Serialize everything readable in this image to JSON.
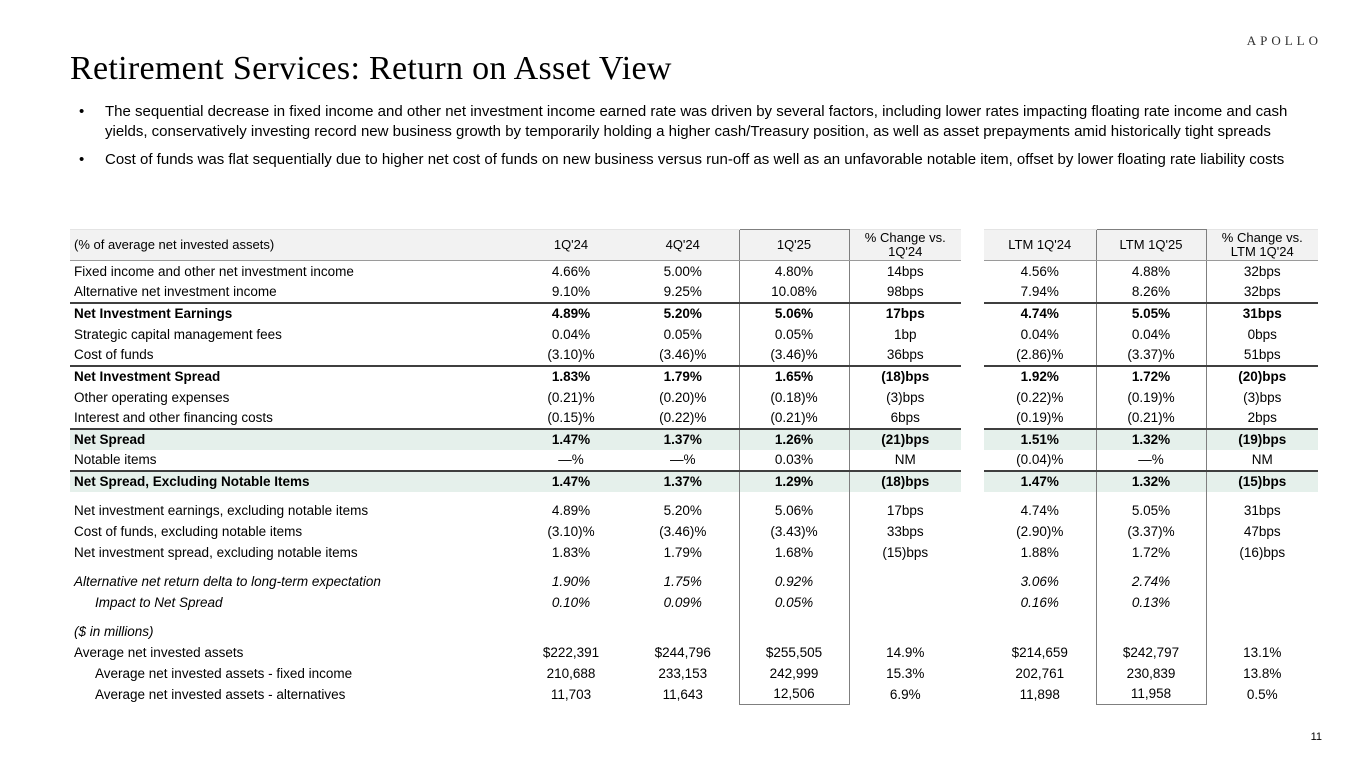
{
  "logo": "APOLLO",
  "page_number": "11",
  "title": "Retirement Services: Return on Asset View",
  "bullets": [
    "The sequential decrease in fixed income and other net investment income earned rate was driven by several factors, including lower rates impacting floating rate income and cash yields, conservatively investing record new business growth by temporarily holding a higher cash/Treasury position, as well as asset prepayments amid historically tight spreads",
    "Cost of funds was flat sequentially due to higher net cost of funds on new business versus run-off as well as an unfavorable notable item, offset by lower floating rate liability costs"
  ],
  "colors": {
    "green_row_bg": "#e5f0eb",
    "header_bg": "#f2f2f2",
    "box_border": "#7f7f7f",
    "section_rule": "#3f3f3f"
  },
  "table": {
    "columns": [
      "(% of average net invested assets)",
      "1Q'24",
      "4Q'24",
      "1Q'25",
      "% Change vs.\n1Q'24",
      "LTM 1Q'24",
      "LTM 1Q'25",
      "% Change vs.\nLTM 1Q'24"
    ],
    "rows": [
      {
        "label": "Fixed income and other net investment income",
        "values": [
          "4.66%",
          "5.00%",
          "4.80%",
          "14bps",
          "4.56%",
          "4.88%",
          "32bps"
        ]
      },
      {
        "label": "Alternative net investment income",
        "values": [
          "9.10%",
          "9.25%",
          "10.08%",
          "98bps",
          "7.94%",
          "8.26%",
          "32bps"
        ]
      },
      {
        "label": "Net Investment Earnings",
        "bold": true,
        "rule": true,
        "values": [
          "4.89%",
          "5.20%",
          "5.06%",
          "17bps",
          "4.74%",
          "5.05%",
          "31bps"
        ]
      },
      {
        "label": "Strategic capital management fees",
        "values": [
          "0.04%",
          "0.05%",
          "0.05%",
          "1bp",
          "0.04%",
          "0.04%",
          "0bps"
        ]
      },
      {
        "label": "Cost of funds",
        "values": [
          "(3.10)%",
          "(3.46)%",
          "(3.46)%",
          "36bps",
          "(2.86)%",
          "(3.37)%",
          "51bps"
        ]
      },
      {
        "label": "Net Investment Spread",
        "bold": true,
        "rule": true,
        "values": [
          "1.83%",
          "1.79%",
          "1.65%",
          "(18)bps",
          "1.92%",
          "1.72%",
          "(20)bps"
        ]
      },
      {
        "label": "Other operating expenses",
        "values": [
          "(0.21)%",
          "(0.20)%",
          "(0.18)%",
          "(3)bps",
          "(0.22)%",
          "(0.19)%",
          "(3)bps"
        ]
      },
      {
        "label": "Interest and other financing costs",
        "values": [
          "(0.15)%",
          "(0.22)%",
          "(0.21)%",
          "6bps",
          "(0.19)%",
          "(0.21)%",
          "2bps"
        ]
      },
      {
        "label": "Net Spread",
        "bold": true,
        "green": true,
        "rule": true,
        "values": [
          "1.47%",
          "1.37%",
          "1.26%",
          "(21)bps",
          "1.51%",
          "1.32%",
          "(19)bps"
        ]
      },
      {
        "label": "Notable items",
        "values": [
          "—%",
          "—%",
          "0.03%",
          "NM",
          "(0.04)%",
          "—%",
          "NM"
        ]
      },
      {
        "label": "Net Spread, Excluding Notable Items",
        "bold": true,
        "green": true,
        "rule": true,
        "values": [
          "1.47%",
          "1.37%",
          "1.29%",
          "(18)bps",
          "1.47%",
          "1.32%",
          "(15)bps"
        ]
      },
      {
        "label": "Net investment earnings, excluding notable items",
        "gap_before": true,
        "values": [
          "4.89%",
          "5.20%",
          "5.06%",
          "17bps",
          "4.74%",
          "5.05%",
          "31bps"
        ]
      },
      {
        "label": "Cost of funds, excluding notable items",
        "values": [
          "(3.10)%",
          "(3.46)%",
          "(3.43)%",
          "33bps",
          "(2.90)%",
          "(3.37)%",
          "47bps"
        ]
      },
      {
        "label": "Net investment spread, excluding notable items",
        "values": [
          "1.83%",
          "1.79%",
          "1.68%",
          "(15)bps",
          "1.88%",
          "1.72%",
          "(16)bps"
        ]
      },
      {
        "label": "Alternative net return delta to long-term expectation",
        "italic": true,
        "gap_before": true,
        "values": [
          "1.90%",
          "1.75%",
          "0.92%",
          "",
          "3.06%",
          "2.74%",
          ""
        ]
      },
      {
        "label": "Impact to Net Spread",
        "italic": true,
        "indent": true,
        "values": [
          "0.10%",
          "0.09%",
          "0.05%",
          "",
          "0.16%",
          "0.13%",
          ""
        ]
      },
      {
        "label": "($ in millions)",
        "italic": true,
        "gap_before": true,
        "values": [
          "",
          "",
          "",
          "",
          "",
          "",
          ""
        ]
      },
      {
        "label": "Average net invested assets",
        "values": [
          "$222,391",
          "$244,796",
          "$255,505",
          "14.9%",
          "$214,659",
          "$242,797",
          "13.1%"
        ]
      },
      {
        "label": "Average net invested assets - fixed income",
        "indent": true,
        "values": [
          "210,688",
          "233,153",
          "242,999",
          "15.3%",
          "202,761",
          "230,839",
          "13.8%"
        ]
      },
      {
        "label": "Average net invested assets - alternatives",
        "indent": true,
        "values": [
          "11,703",
          "11,643",
          "12,506",
          "6.9%",
          "11,898",
          "11,958",
          "0.5%"
        ]
      }
    ]
  }
}
